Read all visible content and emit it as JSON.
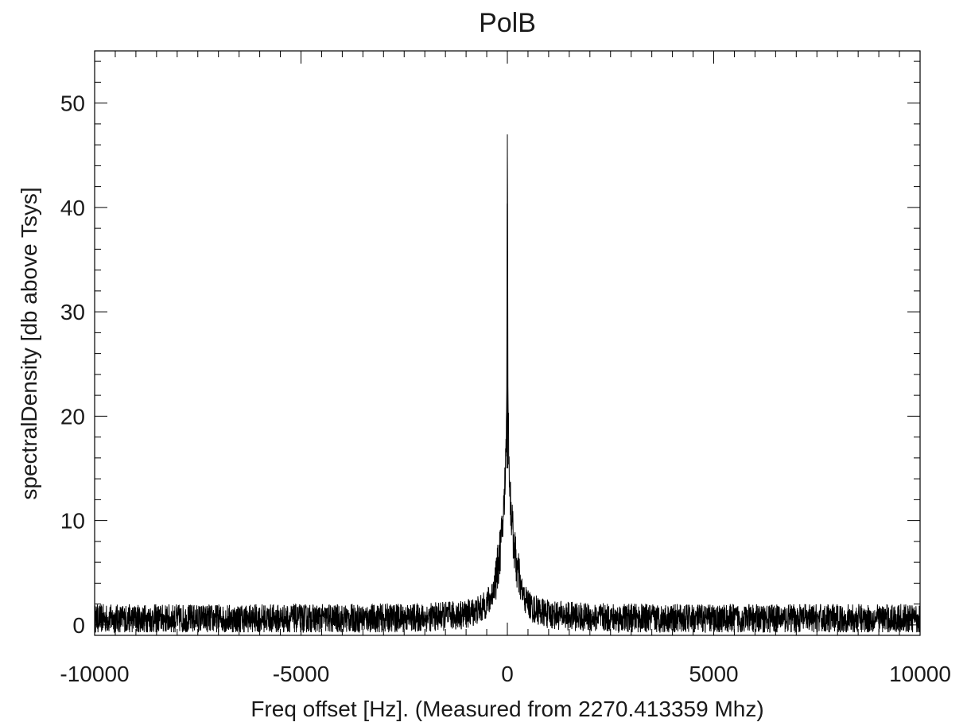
{
  "chart_data": {
    "type": "line",
    "title": "PolB",
    "xlabel": "Freq offset [Hz]. (Measured from 2270.413359 Mhz)",
    "ylabel": "spectralDensity [db above Tsys]",
    "xlim": [
      -10000,
      10000
    ],
    "ylim": [
      -1,
      55
    ],
    "xticks": [
      -10000,
      -5000,
      0,
      5000,
      10000
    ],
    "xtick_labels": [
      "-10000",
      "-5000",
      "0",
      "5000",
      "10000"
    ],
    "yticks": [
      0,
      10,
      20,
      30,
      40,
      50
    ],
    "ytick_labels": [
      "0",
      "10",
      "20",
      "30",
      "40",
      "50"
    ],
    "grid": false,
    "line_color": "#000000",
    "series": [
      {
        "x": [
          -10000,
          -8000,
          -6000,
          -4000,
          -2000,
          -1000,
          -600,
          -400,
          -250,
          -150,
          -80,
          -40,
          -15,
          0,
          15,
          40,
          80,
          150,
          250,
          400,
          600,
          1000,
          2000,
          4000,
          6000,
          8000,
          10000
        ],
        "values": [
          0.5,
          0.5,
          0.5,
          0.5,
          0.6,
          0.9,
          1.5,
          2.5,
          4.5,
          7.5,
          11,
          15,
          22,
          47,
          22,
          15,
          11,
          7.5,
          4.5,
          2.5,
          1.5,
          0.9,
          0.6,
          0.5,
          0.5,
          0.5,
          0.5
        ],
        "noise_band_db": [
          -0.8,
          2.0
        ]
      }
    ]
  }
}
